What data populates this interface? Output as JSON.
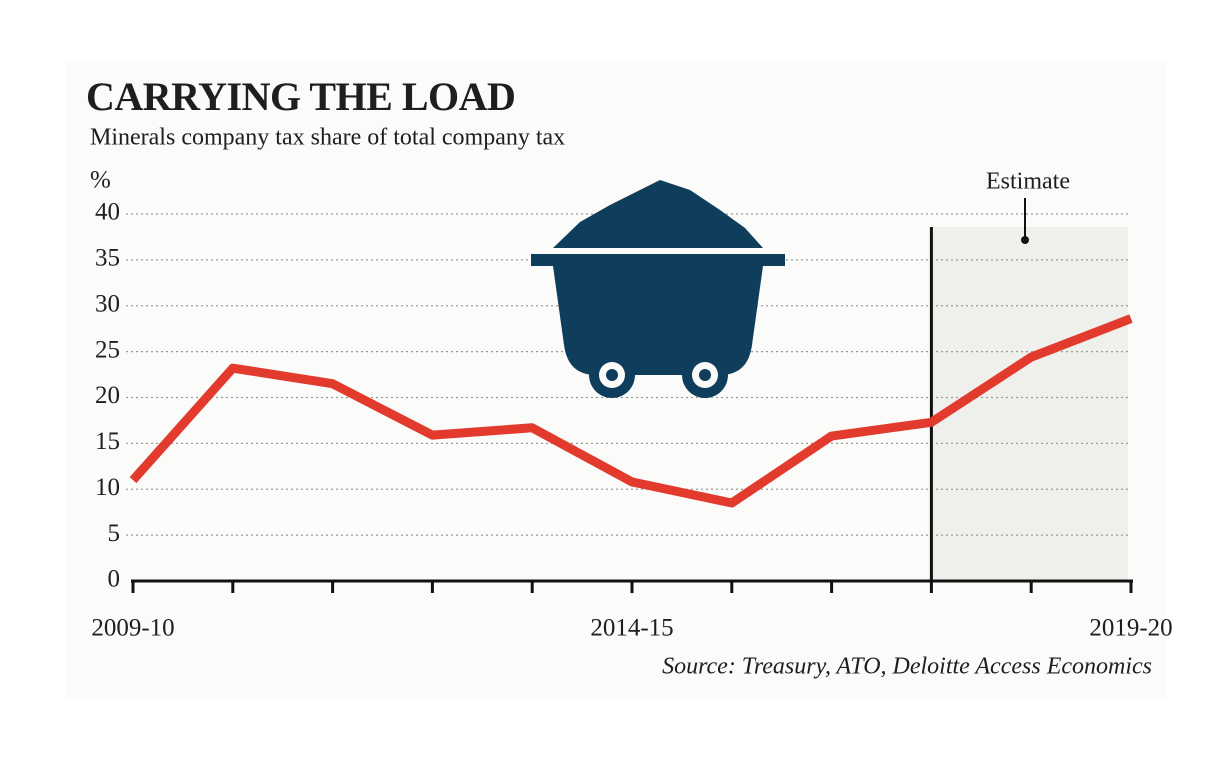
{
  "chart_data": {
    "type": "line",
    "title": "CARRYING THE LOAD",
    "subtitle": "Minerals company tax share of total company tax",
    "y_label": "%",
    "source": "Source: Treasury, ATO, Deloitte Access Economics",
    "annotation": "Estimate",
    "categories": [
      "2009-10",
      null,
      null,
      null,
      null,
      "2014-15",
      null,
      null,
      null,
      null,
      "2019-20"
    ],
    "series": [
      {
        "name": "Minerals company tax share",
        "color": "#e23b2e",
        "values": [
          11,
          23.2,
          21.5,
          15.9,
          16.7,
          10.8,
          8.5,
          15.8,
          17.3,
          24.4,
          28.6
        ]
      }
    ],
    "ylim": [
      0,
      40
    ],
    "yticks": [
      0,
      5,
      10,
      15,
      20,
      25,
      30,
      35,
      40
    ],
    "grid": true
  }
}
